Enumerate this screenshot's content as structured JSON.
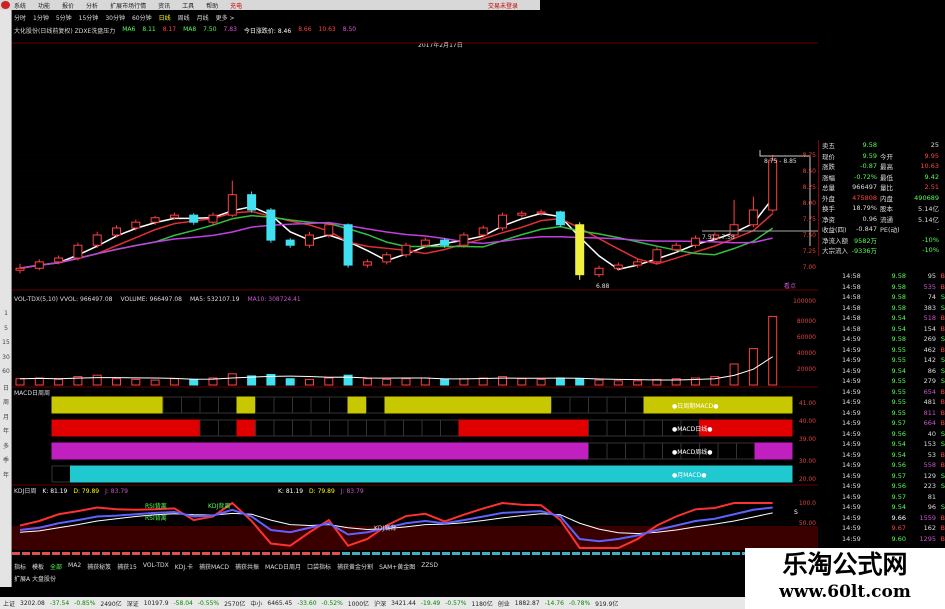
{
  "menu": {
    "items": [
      "系统",
      "功能",
      "报价",
      "分析",
      "扩展市场行情",
      "资讯",
      "工具",
      "帮助"
    ],
    "highlight": "充电",
    "trade_status": "交易未登录"
  },
  "left_toolbar": [
    "1",
    "5",
    "15",
    "30",
    "60",
    "日",
    "周",
    "月",
    "年",
    "多",
    "季",
    "年"
  ],
  "periods": {
    "items": [
      "分时",
      "1分钟",
      "5分钟",
      "15分钟",
      "30分钟",
      "60分钟",
      "日线",
      "周线",
      "月线",
      "更多 >"
    ],
    "selected": "日线"
  },
  "info_line": {
    "title": "大化股份(日线前复权) ZDXE洗盘压力",
    "ma6_label": "MA6",
    "ma6": "8.11",
    "v2": "8.17",
    "ma8_label": "MA8",
    "ma8": "7.50",
    "v4": "7.83",
    "today_label": "今日涨跌价: 8.46",
    "v6": "8.66",
    "v7": "10.63",
    "v8": "8.50"
  },
  "date_label": "2017年2月17日",
  "price_chart": {
    "axis_labels": [
      "8.75",
      "8.50",
      "8.25",
      "8.00",
      "7.75",
      "7.50",
      "7.25",
      "7.00"
    ],
    "annotations": {
      "high_range": "8.75 - 8.85",
      "mid_range": "7.51 - 7.58",
      "low": "6.88",
      "tag": "看点"
    },
    "candles": [
      [
        6.95,
        7.05,
        6.9,
        6.98
      ],
      [
        6.98,
        7.12,
        6.95,
        7.08
      ],
      [
        7.08,
        7.18,
        7.04,
        7.14
      ],
      [
        7.14,
        7.38,
        7.1,
        7.34
      ],
      [
        7.34,
        7.55,
        7.3,
        7.5
      ],
      [
        7.5,
        7.65,
        7.46,
        7.61
      ],
      [
        7.61,
        7.74,
        7.57,
        7.7
      ],
      [
        7.7,
        7.8,
        7.66,
        7.77
      ],
      [
        7.77,
        7.85,
        7.74,
        7.81
      ],
      [
        7.81,
        7.84,
        7.66,
        7.7
      ],
      [
        7.7,
        7.85,
        7.66,
        7.81
      ],
      [
        7.81,
        8.35,
        7.78,
        8.13
      ],
      [
        8.13,
        8.18,
        7.85,
        7.89
      ],
      [
        7.89,
        7.92,
        7.38,
        7.42
      ],
      [
        7.42,
        7.45,
        7.3,
        7.34
      ],
      [
        7.34,
        7.55,
        7.3,
        7.5
      ],
      [
        7.5,
        7.7,
        7.46,
        7.66
      ],
      [
        7.66,
        7.68,
        6.99,
        7.03
      ],
      [
        7.03,
        7.12,
        6.99,
        7.08
      ],
      [
        7.08,
        7.23,
        7.04,
        7.19
      ],
      [
        7.19,
        7.38,
        7.15,
        7.34
      ],
      [
        7.34,
        7.46,
        7.3,
        7.42
      ],
      [
        7.42,
        7.45,
        7.3,
        7.34
      ],
      [
        7.34,
        7.54,
        7.3,
        7.5
      ],
      [
        7.5,
        7.65,
        7.46,
        7.61
      ],
      [
        7.61,
        7.85,
        7.57,
        7.81
      ],
      [
        7.81,
        7.88,
        7.77,
        7.84
      ],
      [
        7.84,
        7.9,
        7.8,
        7.86
      ],
      [
        7.86,
        7.88,
        7.62,
        7.66
      ],
      [
        7.66,
        7.7,
        6.8,
        6.88
      ],
      [
        6.88,
        7.02,
        6.84,
        6.98
      ],
      [
        6.98,
        7.07,
        6.94,
        7.03
      ],
      [
        7.03,
        7.12,
        6.99,
        7.08
      ],
      [
        7.08,
        7.31,
        7.04,
        7.27
      ],
      [
        7.27,
        7.38,
        7.23,
        7.34
      ],
      [
        7.34,
        7.49,
        7.3,
        7.45
      ],
      [
        7.45,
        7.54,
        7.41,
        7.5
      ],
      [
        7.5,
        8.05,
        7.46,
        7.66
      ],
      [
        7.66,
        8.1,
        7.62,
        7.89
      ],
      [
        7.89,
        8.75,
        7.85,
        8.67
      ]
    ],
    "special_candle_index": 29,
    "colors": {
      "up": "#ff4040",
      "down": "#40e0f0",
      "special": "#f0f040",
      "ma_short": "#ffffff",
      "ma_mid": "#e03030",
      "ma_long": "#30c040",
      "ma_xlong": "#c040e0"
    }
  },
  "volume": {
    "label": "VOL-TDX(5,10) VVOL: 966497.08",
    "volume": "VOLUME: 966497.08",
    "ma5": "MA5: 532107.19",
    "ma10": "MA10: 308724.41",
    "axis_labels": [
      "100000",
      "80000",
      "60000",
      "40000",
      "20000"
    ],
    "max": 100000,
    "values": [
      9000,
      10000,
      8000,
      12000,
      14000,
      9000,
      8000,
      7000,
      9000,
      8000,
      10000,
      16000,
      13000,
      15000,
      9000,
      8000,
      10000,
      14000,
      9000,
      8000,
      9000,
      10000,
      8000,
      9000,
      10000,
      12000,
      9000,
      8000,
      10000,
      9000,
      7000,
      6000,
      6000,
      8000,
      9000,
      10000,
      12000,
      30000,
      52000,
      98000
    ]
  },
  "macd_bands": {
    "title": "MACD日周周",
    "axis_labels": [
      "41.00",
      "40.00",
      "39.00",
      "30.00",
      "20.00"
    ],
    "bands": [
      {
        "label": "●日周期MACD●",
        "color": "#c8c800",
        "on": [
          [
            0,
            5
          ],
          [
            10,
            10
          ],
          [
            16,
            16
          ],
          [
            18,
            26
          ],
          [
            32,
            39
          ]
        ]
      },
      {
        "label": "●MACD日线●",
        "color": "#e00000",
        "on": [
          [
            0,
            7
          ],
          [
            10,
            10
          ],
          [
            22,
            28
          ],
          [
            35,
            39
          ]
        ]
      },
      {
        "label": "●MACD周线●",
        "color": "#c020c0",
        "on": [
          [
            0,
            28
          ],
          [
            38,
            39
          ]
        ]
      },
      {
        "label": "●月MACD●",
        "color": "#20c8d0",
        "on": [
          [
            1,
            39
          ]
        ]
      }
    ]
  },
  "kdj": {
    "title": "KDJ日周",
    "k": "K: 81.19",
    "d": "D: 79.89",
    "j": "J: 83.79",
    "k2": "K: 81.19",
    "d2": "D: 79.89",
    "j2": "J: 83.79",
    "axis_labels": [
      "100.0",
      "50.00"
    ],
    "signals": [
      "RSI背离",
      "KDJ背离",
      "RSI背离"
    ],
    "bottom_label": "KDJ底背",
    "end_label": "S",
    "K": [
      40,
      45,
      55,
      62,
      70,
      72,
      75,
      78,
      80,
      70,
      72,
      85,
      70,
      40,
      35,
      45,
      55,
      30,
      35,
      45,
      55,
      60,
      55,
      62,
      70,
      78,
      80,
      82,
      70,
      20,
      15,
      20,
      28,
      40,
      50,
      60,
      65,
      75,
      85,
      90
    ],
    "D": [
      35,
      38,
      45,
      52,
      60,
      65,
      70,
      74,
      76,
      74,
      73,
      77,
      75,
      62,
      52,
      50,
      52,
      45,
      41,
      43,
      47,
      52,
      53,
      56,
      61,
      67,
      72,
      76,
      74,
      55,
      42,
      34,
      32,
      35,
      40,
      47,
      53,
      60,
      69,
      78
    ],
    "J": [
      50,
      60,
      75,
      82,
      90,
      86,
      85,
      86,
      88,
      62,
      70,
      100,
      60,
      10,
      5,
      35,
      62,
      5,
      20,
      50,
      71,
      76,
      59,
      74,
      88,
      100,
      96,
      95,
      62,
      0,
      0,
      0,
      20,
      50,
      70,
      86,
      89,
      100,
      100,
      100
    ]
  },
  "quote": {
    "rows": [
      [
        "卖五",
        "9.58",
        "",
        "25"
      ],
      [
        "现价",
        "9.59",
        "今开",
        "9.95"
      ],
      [
        "涨跌",
        "-0.87",
        "最高",
        "10.63"
      ],
      [
        "涨幅",
        "-0.72%",
        "最低",
        "9.42"
      ],
      [
        "总量",
        "966497",
        "量比",
        "2.51"
      ],
      [
        "外盘",
        "475808",
        "内盘",
        "490689"
      ],
      [
        "换手",
        "18.79%",
        "股本",
        "5.14亿"
      ],
      [
        "净资",
        "0.96",
        "流通",
        "5.14亿"
      ],
      [
        "收益(四)",
        "-0.847",
        "PE(动)",
        "-"
      ],
      [
        "净流入额",
        "9582万",
        "",
        "-10%"
      ],
      [
        "大宗流入",
        "-9336万",
        "",
        "-10%"
      ]
    ],
    "value_colors": [
      "#5f5",
      "#5f5",
      "#5f5",
      "#5f5",
      "#ddd",
      "#f44",
      "#ddd",
      "#ddd",
      "#ddd",
      "#5f5",
      "#5f5"
    ],
    "value2_colors": [
      "#ddd",
      "#f44",
      "#f44",
      "#5f5",
      "#f44",
      "#5f5",
      "#ddd",
      "#ddd",
      "#ddd",
      "#5f5",
      "#5f5"
    ]
  },
  "ticks": [
    [
      "14:58",
      "9.58",
      "95",
      "B"
    ],
    [
      "14:58",
      "9.58",
      "535",
      "B"
    ],
    [
      "14:58",
      "9.58",
      "74",
      "S"
    ],
    [
      "14:58",
      "9.58",
      "383",
      "S"
    ],
    [
      "14:58",
      "9.54",
      "518",
      "B"
    ],
    [
      "14:58",
      "9.54",
      "154",
      "B"
    ],
    [
      "14:59",
      "9.58",
      "269",
      "S"
    ],
    [
      "14:59",
      "9.55",
      "462",
      "B"
    ],
    [
      "14:59",
      "9.55",
      "142",
      "S"
    ],
    [
      "14:59",
      "9.54",
      "86",
      "S"
    ],
    [
      "14:59",
      "9.55",
      "279",
      "S"
    ],
    [
      "14:59",
      "9.55",
      "654",
      "B"
    ],
    [
      "14:59",
      "9.55",
      "481",
      "B"
    ],
    [
      "14:59",
      "9.55",
      "811",
      "B"
    ],
    [
      "14:59",
      "9.57",
      "664",
      "B"
    ],
    [
      "14:59",
      "9.56",
      "40",
      "S"
    ],
    [
      "14:59",
      "9.54",
      "153",
      "S"
    ],
    [
      "14:59",
      "9.54",
      "53",
      "B"
    ],
    [
      "14:59",
      "9.56",
      "558",
      "B"
    ],
    [
      "14:59",
      "9.57",
      "129",
      "S"
    ],
    [
      "14:59",
      "9.56",
      "223",
      "S"
    ],
    [
      "14:59",
      "9.57",
      "81",
      ""
    ],
    [
      "14:59",
      "9.54",
      "96",
      "S"
    ],
    [
      "14:59",
      "9.66",
      "1559",
      "B"
    ],
    [
      "14:59",
      "9.67",
      "162",
      "B"
    ],
    [
      "14:59",
      "9.60",
      "1295",
      "B"
    ]
  ],
  "bottom_tabs": {
    "items": [
      "指标",
      "模板",
      "全部",
      "MA2",
      "捕获秘笈",
      "捕获15",
      "VOL-TDX",
      "KDJ.卡",
      "捕获MACD",
      "捕获共振",
      "MACD日周月",
      "口袋指标",
      "捕获黄金分割",
      "SAM+黄金图",
      "ZZSD"
    ],
    "selected": "全部"
  },
  "ext_label": "扩展A  大盘股份",
  "status": [
    {
      "name": "上证",
      "v": "3202.08",
      "c": "-37.54",
      "p": "-0.85%",
      "a": "2490亿"
    },
    {
      "name": "深证",
      "v": "10197.9",
      "c": "-58.04",
      "p": "-0.55%",
      "a": "2570亿"
    },
    {
      "name": "中小",
      "v": "6465.45",
      "c": "-33.60",
      "p": "-0.52%",
      "a": "1000亿"
    },
    {
      "name": "沪深",
      "v": "3421.44",
      "c": "-19.49",
      "p": "-0.57%",
      "a": "1180亿"
    },
    {
      "name": "创业",
      "v": "1882.87",
      "c": "-14.76",
      "p": "-0.78%",
      "a": "919.9亿"
    }
  ],
  "watermark": {
    "title": "乐淘公式网",
    "url": "www.60lt.com"
  }
}
